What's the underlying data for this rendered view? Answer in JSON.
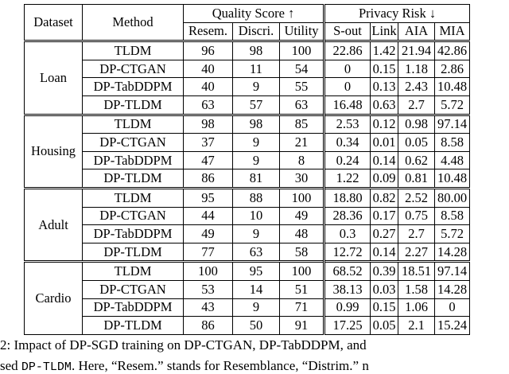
{
  "table": {
    "headers": {
      "dataset": "Dataset",
      "method": "Method",
      "quality": "Quality Score ↑",
      "privacy": "Privacy Risk ↓",
      "columns": [
        "Resem.",
        "Discri.",
        "Utility",
        "S-out",
        "Link",
        "AIA",
        "MIA"
      ]
    },
    "groups": [
      {
        "dataset": "Loan",
        "rows": [
          {
            "method": "TLDM",
            "values": [
              "96",
              "98",
              "100",
              "22.86",
              "1.42",
              "21.94",
              "42.86"
            ]
          },
          {
            "method": "DP-CTGAN",
            "values": [
              "40",
              "11",
              "54",
              "0",
              "0.15",
              "1.18",
              "2.86"
            ]
          },
          {
            "method": "DP-TabDDPM",
            "values": [
              "40",
              "9",
              "55",
              "0",
              "0.13",
              "2.43",
              "10.48"
            ]
          },
          {
            "method": "DP-TLDM",
            "values": [
              "63",
              "57",
              "63",
              "16.48",
              "0.63",
              "2.7",
              "5.72"
            ]
          }
        ]
      },
      {
        "dataset": "Housing",
        "rows": [
          {
            "method": "TLDM",
            "values": [
              "98",
              "98",
              "85",
              "2.53",
              "0.12",
              "0.98",
              "97.14"
            ]
          },
          {
            "method": "DP-CTGAN",
            "values": [
              "37",
              "9",
              "21",
              "0.34",
              "0.01",
              "0.05",
              "8.58"
            ]
          },
          {
            "method": "DP-TabDDPM",
            "values": [
              "47",
              "9",
              "8",
              "0.24",
              "0.14",
              "0.62",
              "4.48"
            ]
          },
          {
            "method": "DP-TLDM",
            "values": [
              "86",
              "81",
              "30",
              "1.22",
              "0.09",
              "0.81",
              "10.48"
            ]
          }
        ]
      },
      {
        "dataset": "Adult",
        "rows": [
          {
            "method": "TLDM",
            "values": [
              "95",
              "88",
              "100",
              "18.80",
              "0.82",
              "2.52",
              "80.00"
            ]
          },
          {
            "method": "DP-CTGAN",
            "values": [
              "44",
              "10",
              "49",
              "28.36",
              "0.17",
              "0.75",
              "8.58"
            ]
          },
          {
            "method": "DP-TabDDPM",
            "values": [
              "49",
              "9",
              "48",
              "0.3",
              "0.27",
              "2.7",
              "5.72"
            ]
          },
          {
            "method": "DP-TLDM",
            "values": [
              "77",
              "63",
              "58",
              "12.72",
              "0.14",
              "2.27",
              "14.28"
            ]
          }
        ]
      },
      {
        "dataset": "Cardio",
        "rows": [
          {
            "method": "TLDM",
            "values": [
              "100",
              "95",
              "100",
              "68.52",
              "0.39",
              "18.51",
              "97.14"
            ]
          },
          {
            "method": "DP-CTGAN",
            "values": [
              "53",
              "14",
              "51",
              "38.13",
              "0.03",
              "1.58",
              "14.28"
            ]
          },
          {
            "method": "DP-TabDDPM",
            "values": [
              "43",
              "9",
              "71",
              "0.99",
              "0.15",
              "1.06",
              "0"
            ]
          },
          {
            "method": "DP-TLDM",
            "values": [
              "86",
              "50",
              "91",
              "17.25",
              "0.05",
              "2.1",
              "15.24"
            ]
          }
        ]
      }
    ]
  },
  "caption": {
    "line1": "2: Impact of DP-SGD training on DP-CTGAN, DP-TabDDPM, and",
    "line2": [
      "sed ",
      "DP-TLDM",
      ". Here, “Resem.” stands for Resemblance, “Distrim.” n"
    ]
  }
}
